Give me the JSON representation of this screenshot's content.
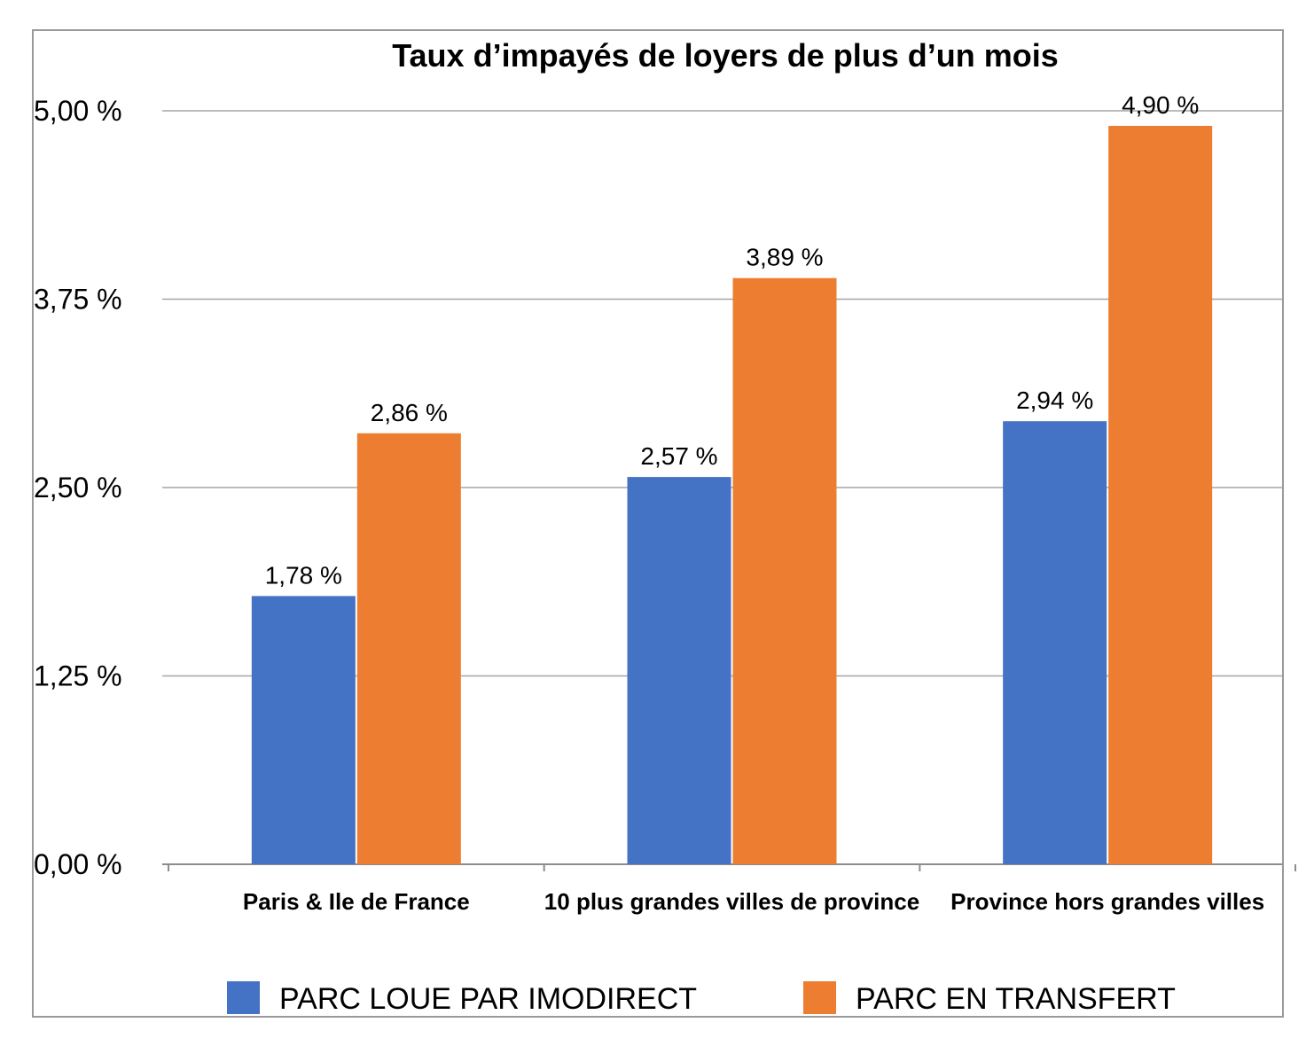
{
  "chart_data": {
    "type": "bar",
    "title": "Taux d’impayés de loyers de plus d’un mois",
    "categories": [
      "Paris & Ile de France",
      "10 plus grandes villes de province",
      "Province hors grandes villes"
    ],
    "series": [
      {
        "name": "PARC LOUE PAR IMODIRECT",
        "color": "#4472C4",
        "values": [
          1.78,
          2.57,
          2.94
        ],
        "labels": [
          "1,78 %",
          "2,57 %",
          "2,94 %"
        ]
      },
      {
        "name": "PARC EN TRANSFERT",
        "color": "#ED7D31",
        "values": [
          2.86,
          3.89,
          4.9
        ],
        "labels": [
          "2,86 %",
          "3,89 %",
          "4,90 %"
        ]
      }
    ],
    "ylim": [
      0,
      5
    ],
    "yticks": [
      0,
      1.25,
      2.5,
      3.75,
      5
    ],
    "ytick_labels": [
      "0,00 %",
      "1,25 %",
      "2,50 %",
      "3,75 %",
      "5,00 %"
    ],
    "grid": true,
    "legend_position": "bottom",
    "xlabel": "",
    "ylabel": ""
  }
}
